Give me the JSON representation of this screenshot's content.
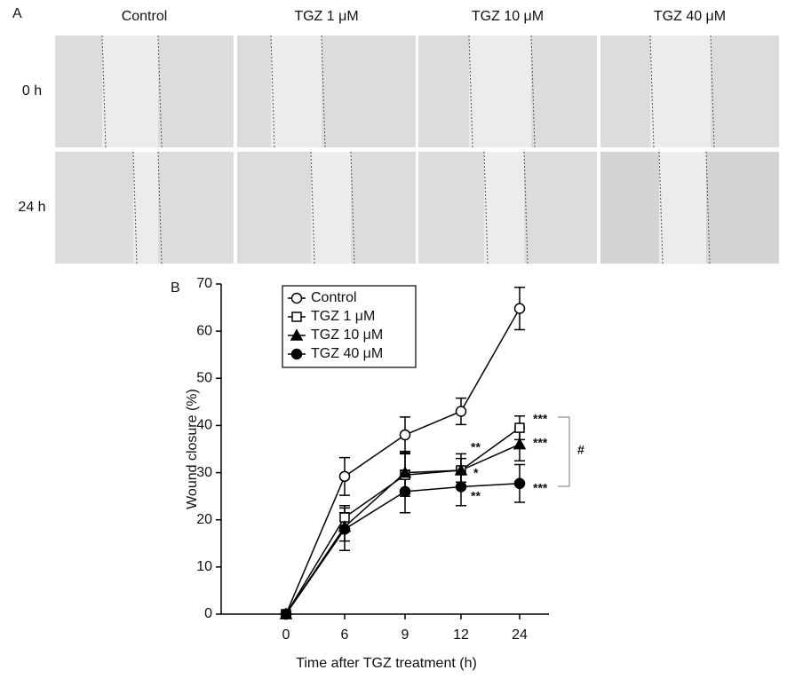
{
  "panel_a": {
    "label": "A",
    "columns": [
      "Control",
      "TGZ 1 μM",
      "TGZ 10 μM",
      "TGZ 40 μM"
    ],
    "rows": [
      "0 h",
      "24 h"
    ]
  },
  "chart_data": {
    "type": "line",
    "label": "B",
    "x_label": "Time after TGZ treatment (h)",
    "y_label": "Wound closure (%)",
    "categories": [
      "0",
      "6",
      "9",
      "12",
      "24"
    ],
    "ylim": [
      0,
      70
    ],
    "yticks": [
      0,
      10,
      20,
      30,
      40,
      50,
      60,
      70
    ],
    "legend": "top-left",
    "series": [
      {
        "name": "Control",
        "color": "#000000",
        "marker": "circle-open",
        "values": [
          0,
          29.2,
          38,
          43,
          64.8
        ],
        "errors": [
          0,
          4,
          3.8,
          2.8,
          4.5
        ]
      },
      {
        "name": "TGZ 1 μM",
        "color": "#000000",
        "marker": "square-open",
        "values": [
          0,
          20.5,
          29.5,
          30.5,
          39.5
        ],
        "errors": [
          0,
          2.5,
          4.5,
          2.5,
          2.5
        ]
      },
      {
        "name": "TGZ 10 μM",
        "color": "#000000",
        "marker": "triangle",
        "values": [
          0,
          18.5,
          30,
          30.5,
          36
        ],
        "errors": [
          0,
          3,
          4.5,
          3.5,
          3.5
        ]
      },
      {
        "name": "TGZ 40 μM",
        "color": "#000000",
        "marker": "circle",
        "values": [
          0,
          18,
          26,
          27,
          27.7
        ],
        "errors": [
          0,
          4.5,
          4.5,
          4,
          4
        ]
      }
    ],
    "annotations": [
      "***",
      "***",
      "***",
      "**",
      "*",
      "**",
      "#"
    ]
  }
}
